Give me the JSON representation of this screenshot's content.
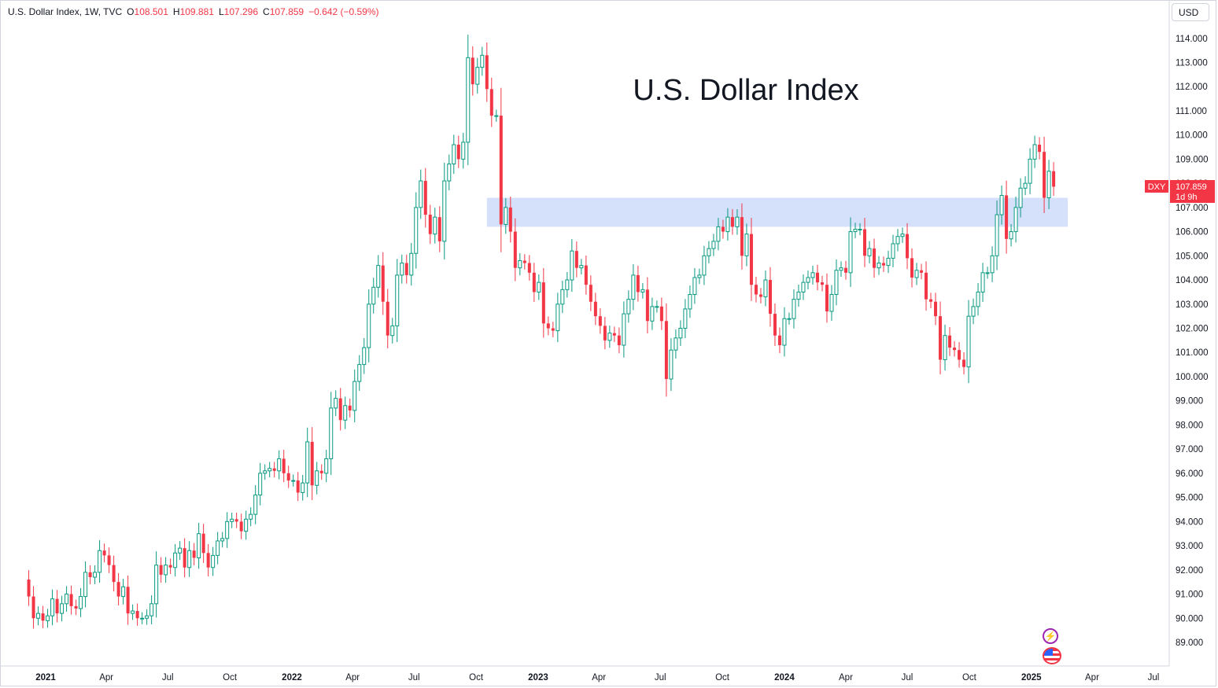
{
  "legend": {
    "symbol": "U.S. Dollar Index, 1W, TVC",
    "open_label": "O",
    "open": "108.501",
    "high_label": "H",
    "high": "109.881",
    "low_label": "L",
    "low": "107.296",
    "close_label": "C",
    "close": "107.859",
    "change": "−0.642 (−0.59%)"
  },
  "currency_button": "USD",
  "price_tag": {
    "symbol": "DXY",
    "price": "107.859",
    "countdown": "1d 9h"
  },
  "colors": {
    "up": "#089981",
    "down": "#f23645",
    "zone": "#d5e0fb",
    "axis_text": "#131722"
  },
  "icons": [
    "flash-icon",
    "us-flag-icon"
  ],
  "chart_data": {
    "type": "candlestick",
    "title": "U.S. Dollar Index",
    "interval": "1W",
    "ylim": [
      88.0,
      115.0
    ],
    "y_ticks": [
      89,
      90,
      91,
      92,
      93,
      94,
      95,
      96,
      97,
      98,
      99,
      100,
      101,
      102,
      103,
      104,
      105,
      106,
      107,
      108,
      109,
      110,
      111,
      112,
      113,
      114
    ],
    "x_ticks": [
      {
        "label": "2021",
        "date": "2021-01-01",
        "bold": true
      },
      {
        "label": "Apr",
        "date": "2021-04-01"
      },
      {
        "label": "Jul",
        "date": "2021-07-01"
      },
      {
        "label": "Oct",
        "date": "2021-10-01"
      },
      {
        "label": "2022",
        "date": "2022-01-01",
        "bold": true
      },
      {
        "label": "Apr",
        "date": "2022-04-01"
      },
      {
        "label": "Jul",
        "date": "2022-07-01"
      },
      {
        "label": "Oct",
        "date": "2022-10-01"
      },
      {
        "label": "2023",
        "date": "2023-01-01",
        "bold": true
      },
      {
        "label": "Apr",
        "date": "2023-04-01"
      },
      {
        "label": "Jul",
        "date": "2023-07-01"
      },
      {
        "label": "Oct",
        "date": "2023-10-01"
      },
      {
        "label": "2024",
        "date": "2024-01-01",
        "bold": true
      },
      {
        "label": "Apr",
        "date": "2024-04-01"
      },
      {
        "label": "Jul",
        "date": "2024-07-01"
      },
      {
        "label": "Oct",
        "date": "2024-10-01"
      },
      {
        "label": "2025",
        "date": "2025-01-01",
        "bold": true
      },
      {
        "label": "Apr",
        "date": "2025-04-01"
      },
      {
        "label": "Jul",
        "date": "2025-07-01"
      }
    ],
    "zone": {
      "from": "2022-10-17",
      "to": "2025-02-24",
      "low": 106.2,
      "high": 107.4
    },
    "close_series": [
      [
        "2020-12-07",
        90.9
      ],
      [
        "2020-12-14",
        90.0
      ],
      [
        "2020-12-21",
        90.2
      ],
      [
        "2020-12-28",
        89.9
      ],
      [
        "2021-01-04",
        90.1
      ],
      [
        "2021-01-11",
        90.8
      ],
      [
        "2021-01-18",
        90.2
      ],
      [
        "2021-01-25",
        90.6
      ],
      [
        "2021-02-01",
        91.0
      ],
      [
        "2021-02-08",
        90.5
      ],
      [
        "2021-02-15",
        90.4
      ],
      [
        "2021-02-22",
        90.9
      ],
      [
        "2021-03-01",
        91.9
      ],
      [
        "2021-03-08",
        91.7
      ],
      [
        "2021-03-15",
        91.9
      ],
      [
        "2021-03-22",
        92.8
      ],
      [
        "2021-03-29",
        92.6
      ],
      [
        "2021-04-05",
        92.2
      ],
      [
        "2021-04-12",
        91.5
      ],
      [
        "2021-04-19",
        90.9
      ],
      [
        "2021-04-26",
        91.3
      ],
      [
        "2021-05-03",
        90.2
      ],
      [
        "2021-05-10",
        90.3
      ],
      [
        "2021-05-17",
        90.0
      ],
      [
        "2021-05-24",
        90.0
      ],
      [
        "2021-05-31",
        90.1
      ],
      [
        "2021-06-07",
        90.6
      ],
      [
        "2021-06-14",
        92.2
      ],
      [
        "2021-06-21",
        91.8
      ],
      [
        "2021-06-28",
        92.2
      ],
      [
        "2021-07-05",
        92.1
      ],
      [
        "2021-07-12",
        92.7
      ],
      [
        "2021-07-19",
        92.9
      ],
      [
        "2021-07-26",
        92.1
      ],
      [
        "2021-08-02",
        92.8
      ],
      [
        "2021-08-09",
        92.5
      ],
      [
        "2021-08-16",
        93.5
      ],
      [
        "2021-08-23",
        92.7
      ],
      [
        "2021-08-30",
        92.1
      ],
      [
        "2021-09-06",
        92.6
      ],
      [
        "2021-09-13",
        93.2
      ],
      [
        "2021-09-20",
        93.3
      ],
      [
        "2021-09-27",
        94.0
      ],
      [
        "2021-10-04",
        94.1
      ],
      [
        "2021-10-11",
        94.0
      ],
      [
        "2021-10-18",
        93.6
      ],
      [
        "2021-10-25",
        94.1
      ],
      [
        "2021-11-01",
        94.3
      ],
      [
        "2021-11-08",
        95.1
      ],
      [
        "2021-11-15",
        96.0
      ],
      [
        "2021-11-22",
        96.1
      ],
      [
        "2021-11-29",
        96.2
      ],
      [
        "2021-12-06",
        96.1
      ],
      [
        "2021-12-13",
        96.6
      ],
      [
        "2021-12-20",
        96.0
      ],
      [
        "2021-12-27",
        95.7
      ],
      [
        "2022-01-03",
        95.7
      ],
      [
        "2022-01-10",
        95.2
      ],
      [
        "2022-01-17",
        95.6
      ],
      [
        "2022-01-24",
        97.3
      ],
      [
        "2022-01-31",
        95.5
      ],
      [
        "2022-02-07",
        96.1
      ],
      [
        "2022-02-14",
        96.0
      ],
      [
        "2022-02-21",
        96.6
      ],
      [
        "2022-02-28",
        98.7
      ],
      [
        "2022-03-07",
        99.1
      ],
      [
        "2022-03-14",
        98.2
      ],
      [
        "2022-03-21",
        98.8
      ],
      [
        "2022-03-28",
        98.6
      ],
      [
        "2022-04-04",
        99.8
      ],
      [
        "2022-04-11",
        100.5
      ],
      [
        "2022-04-18",
        101.2
      ],
      [
        "2022-04-25",
        103.0
      ],
      [
        "2022-05-02",
        103.7
      ],
      [
        "2022-05-09",
        104.6
      ],
      [
        "2022-05-16",
        103.1
      ],
      [
        "2022-05-23",
        101.7
      ],
      [
        "2022-05-30",
        102.1
      ],
      [
        "2022-06-06",
        104.2
      ],
      [
        "2022-06-13",
        104.7
      ],
      [
        "2022-06-20",
        104.2
      ],
      [
        "2022-06-27",
        105.1
      ],
      [
        "2022-07-04",
        107.0
      ],
      [
        "2022-07-11",
        108.1
      ],
      [
        "2022-07-18",
        106.7
      ],
      [
        "2022-07-25",
        105.9
      ],
      [
        "2022-08-01",
        106.6
      ],
      [
        "2022-08-08",
        105.6
      ],
      [
        "2022-08-15",
        108.1
      ],
      [
        "2022-08-22",
        108.8
      ],
      [
        "2022-08-29",
        109.6
      ],
      [
        "2022-09-05",
        109.0
      ],
      [
        "2022-09-12",
        109.7
      ],
      [
        "2022-09-19",
        113.2
      ],
      [
        "2022-09-26",
        112.1
      ],
      [
        "2022-10-03",
        112.8
      ],
      [
        "2022-10-10",
        113.3
      ],
      [
        "2022-10-17",
        111.9
      ],
      [
        "2022-10-24",
        110.8
      ],
      [
        "2022-10-31",
        110.8
      ],
      [
        "2022-11-07",
        106.3
      ],
      [
        "2022-11-14",
        107.0
      ],
      [
        "2022-11-21",
        106.0
      ],
      [
        "2022-11-28",
        104.5
      ],
      [
        "2022-12-05",
        104.8
      ],
      [
        "2022-12-12",
        104.7
      ],
      [
        "2022-12-19",
        104.3
      ],
      [
        "2022-12-26",
        103.5
      ],
      [
        "2023-01-02",
        103.9
      ],
      [
        "2023-01-09",
        102.2
      ],
      [
        "2023-01-16",
        102.0
      ],
      [
        "2023-01-23",
        101.9
      ],
      [
        "2023-01-30",
        103.0
      ],
      [
        "2023-02-06",
        103.6
      ],
      [
        "2023-02-13",
        104.0
      ],
      [
        "2023-02-20",
        105.2
      ],
      [
        "2023-02-27",
        104.5
      ],
      [
        "2023-03-06",
        104.6
      ],
      [
        "2023-03-13",
        103.8
      ],
      [
        "2023-03-20",
        103.1
      ],
      [
        "2023-03-27",
        102.5
      ],
      [
        "2023-04-03",
        102.1
      ],
      [
        "2023-04-10",
        101.5
      ],
      [
        "2023-04-17",
        101.8
      ],
      [
        "2023-04-24",
        101.7
      ],
      [
        "2023-05-01",
        101.3
      ],
      [
        "2023-05-08",
        102.6
      ],
      [
        "2023-05-15",
        103.2
      ],
      [
        "2023-05-22",
        104.2
      ],
      [
        "2023-05-29",
        103.5
      ],
      [
        "2023-06-05",
        103.6
      ],
      [
        "2023-06-12",
        102.3
      ],
      [
        "2023-06-19",
        102.9
      ],
      [
        "2023-06-26",
        102.9
      ],
      [
        "2023-07-03",
        102.3
      ],
      [
        "2023-07-10",
        99.9
      ],
      [
        "2023-07-17",
        101.1
      ],
      [
        "2023-07-24",
        101.6
      ],
      [
        "2023-07-31",
        102.0
      ],
      [
        "2023-08-07",
        102.8
      ],
      [
        "2023-08-14",
        103.4
      ],
      [
        "2023-08-21",
        104.1
      ],
      [
        "2023-08-28",
        104.2
      ],
      [
        "2023-09-04",
        105.0
      ],
      [
        "2023-09-11",
        105.3
      ],
      [
        "2023-09-18",
        105.6
      ],
      [
        "2023-09-25",
        106.2
      ],
      [
        "2023-10-02",
        106.0
      ],
      [
        "2023-10-09",
        106.6
      ],
      [
        "2023-10-16",
        106.2
      ],
      [
        "2023-10-23",
        106.6
      ],
      [
        "2023-10-30",
        105.0
      ],
      [
        "2023-11-06",
        105.9
      ],
      [
        "2023-11-13",
        103.8
      ],
      [
        "2023-11-20",
        103.4
      ],
      [
        "2023-11-27",
        103.3
      ],
      [
        "2023-12-04",
        104.0
      ],
      [
        "2023-12-11",
        102.6
      ],
      [
        "2023-12-18",
        101.7
      ],
      [
        "2023-12-25",
        101.3
      ],
      [
        "2024-01-01",
        102.4
      ],
      [
        "2024-01-08",
        102.4
      ],
      [
        "2024-01-15",
        103.2
      ],
      [
        "2024-01-22",
        103.5
      ],
      [
        "2024-01-29",
        103.9
      ],
      [
        "2024-02-05",
        104.1
      ],
      [
        "2024-02-12",
        104.3
      ],
      [
        "2024-02-19",
        103.9
      ],
      [
        "2024-02-26",
        103.8
      ],
      [
        "2024-03-04",
        102.7
      ],
      [
        "2024-03-11",
        103.4
      ],
      [
        "2024-03-18",
        104.4
      ],
      [
        "2024-03-25",
        104.5
      ],
      [
        "2024-04-01",
        104.3
      ],
      [
        "2024-04-08",
        106.0
      ],
      [
        "2024-04-15",
        106.1
      ],
      [
        "2024-04-22",
        106.1
      ],
      [
        "2024-04-29",
        105.0
      ],
      [
        "2024-05-06",
        105.3
      ],
      [
        "2024-05-13",
        104.5
      ],
      [
        "2024-05-20",
        104.7
      ],
      [
        "2024-05-27",
        104.6
      ],
      [
        "2024-06-03",
        104.9
      ],
      [
        "2024-06-10",
        105.5
      ],
      [
        "2024-06-17",
        105.8
      ],
      [
        "2024-06-24",
        105.9
      ],
      [
        "2024-07-01",
        104.9
      ],
      [
        "2024-07-08",
        104.1
      ],
      [
        "2024-07-15",
        104.4
      ],
      [
        "2024-07-22",
        104.3
      ],
      [
        "2024-07-29",
        103.2
      ],
      [
        "2024-08-05",
        103.1
      ],
      [
        "2024-08-12",
        102.5
      ],
      [
        "2024-08-19",
        100.7
      ],
      [
        "2024-08-26",
        101.7
      ],
      [
        "2024-09-02",
        101.2
      ],
      [
        "2024-09-09",
        101.1
      ],
      [
        "2024-09-16",
        100.7
      ],
      [
        "2024-09-23",
        100.4
      ],
      [
        "2024-09-30",
        102.5
      ],
      [
        "2024-10-07",
        102.9
      ],
      [
        "2024-10-14",
        103.5
      ],
      [
        "2024-10-21",
        104.3
      ],
      [
        "2024-10-28",
        104.3
      ],
      [
        "2024-11-04",
        105.0
      ],
      [
        "2024-11-11",
        106.7
      ],
      [
        "2024-11-18",
        107.5
      ],
      [
        "2024-11-25",
        105.7
      ],
      [
        "2024-12-02",
        106.0
      ],
      [
        "2024-12-09",
        107.0
      ],
      [
        "2024-12-16",
        107.8
      ],
      [
        "2024-12-23",
        108.0
      ],
      [
        "2024-12-30",
        109.0
      ],
      [
        "2025-01-06",
        109.6
      ],
      [
        "2025-01-13",
        109.3
      ],
      [
        "2025-01-20",
        107.4
      ],
      [
        "2025-01-27",
        108.5
      ],
      [
        "2025-02-03",
        107.86
      ]
    ]
  }
}
